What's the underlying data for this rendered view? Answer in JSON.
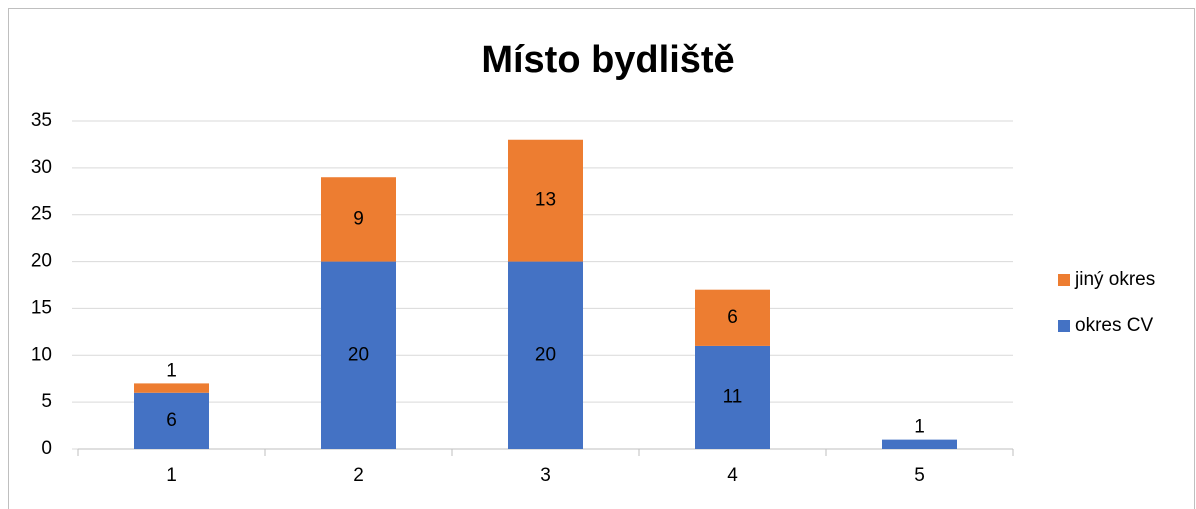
{
  "chart_data": {
    "type": "stacked_bar",
    "title": "Místo bydliště",
    "categories": [
      "1",
      "2",
      "3",
      "4",
      "5"
    ],
    "series": [
      {
        "name": "okres CV",
        "color": "#4472c4",
        "values": [
          6,
          20,
          20,
          11,
          1
        ]
      },
      {
        "name": "jiný okres",
        "color": "#ed7d31",
        "values": [
          1,
          9,
          13,
          6,
          null
        ]
      }
    ],
    "ylim": [
      0,
      35
    ],
    "yticks": [
      0,
      5,
      10,
      15,
      20,
      25,
      30,
      35
    ],
    "grid": true,
    "legend": "right"
  }
}
